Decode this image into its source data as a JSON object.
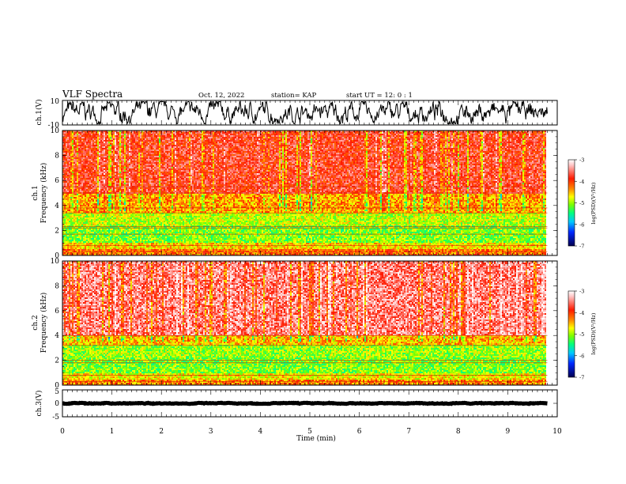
{
  "header": {
    "title": "VLF Spectra",
    "date": "Oct. 12, 2022",
    "station": "station= KAP",
    "start_ut": "start UT =   12: 0  : 1"
  },
  "chart_data": [
    {
      "type": "line",
      "name": "ch1-waveform",
      "ylabel": "ch.1(V)",
      "ylim": [
        -10,
        10
      ],
      "yticks": [
        "10",
        "-10"
      ],
      "xlim": [
        0,
        10
      ],
      "trace_level_V": 0,
      "trace_range_V": [
        -9,
        9
      ],
      "data_extent_min": 9.8
    },
    {
      "type": "heatmap",
      "name": "ch1-spectrogram",
      "ylabel": "ch.1",
      "ylabel2": "Frequency (kHz)",
      "ylim": [
        0,
        10
      ],
      "yticks": [
        "0",
        "2",
        "4",
        "6",
        "8",
        "10"
      ],
      "xlim": [
        0,
        10
      ],
      "data_extent_min": 9.8,
      "bands_kHz": [
        {
          "from": 0.0,
          "to": 0.5,
          "log_psd": -4.2
        },
        {
          "from": 0.5,
          "to": 1.0,
          "log_psd": -4.6
        },
        {
          "from": 1.0,
          "to": 2.4,
          "log_psd": -5.1
        },
        {
          "from": 2.4,
          "to": 3.4,
          "log_psd": -4.9
        },
        {
          "from": 3.4,
          "to": 5.0,
          "log_psd": -4.4
        },
        {
          "from": 5.0,
          "to": 10.0,
          "log_psd": -3.8
        }
      ],
      "lines_kHz": [
        0.3,
        0.8,
        1.7,
        2.2,
        2.3,
        3.4,
        3.8,
        5.0,
        5.5
      ]
    },
    {
      "type": "heatmap",
      "name": "ch2-spectrogram",
      "ylabel": "ch.2",
      "ylabel2": "Frequency (kHz)",
      "ylim": [
        0,
        10
      ],
      "yticks": [
        "0",
        "2",
        "4",
        "6",
        "8",
        "10"
      ],
      "xlim": [
        0,
        10
      ],
      "data_extent_min": 9.8,
      "bands_kHz": [
        {
          "from": 0.0,
          "to": 0.5,
          "log_psd": -4.3
        },
        {
          "from": 0.5,
          "to": 1.0,
          "log_psd": -4.7
        },
        {
          "from": 1.0,
          "to": 2.2,
          "log_psd": -5.1
        },
        {
          "from": 2.2,
          "to": 3.2,
          "log_psd": -5.0
        },
        {
          "from": 3.2,
          "to": 4.0,
          "log_psd": -4.5
        },
        {
          "from": 4.0,
          "to": 10.0,
          "log_psd": -3.5
        }
      ],
      "lines_kHz": [
        0.3,
        0.8,
        1.8,
        2.0,
        3.2,
        4.0
      ]
    },
    {
      "type": "line",
      "name": "ch3-waveform",
      "ylabel": "ch.3(V)",
      "ylim": [
        -5,
        5
      ],
      "yticks": [
        "5",
        "0",
        "-5"
      ],
      "xlim": [
        0,
        10
      ],
      "trace_level_V": 0,
      "trace_range_V": [
        -0.2,
        0.2
      ],
      "data_extent_min": 9.8
    }
  ],
  "x_axis": {
    "label": "Time (min)",
    "range": [
      0,
      10
    ],
    "ticks": [
      "0",
      "1",
      "2",
      "3",
      "4",
      "5",
      "6",
      "7",
      "8",
      "9",
      "10"
    ]
  },
  "colorbar": {
    "label": "log(PSD)(V²/Hz)",
    "range": [
      -7,
      -3
    ],
    "ticks": [
      "-3",
      "-4",
      "-5",
      "-6",
      "-7"
    ]
  },
  "colors": {
    "trace": "#000000",
    "axes": "#000000",
    "background": "#ffffff"
  }
}
